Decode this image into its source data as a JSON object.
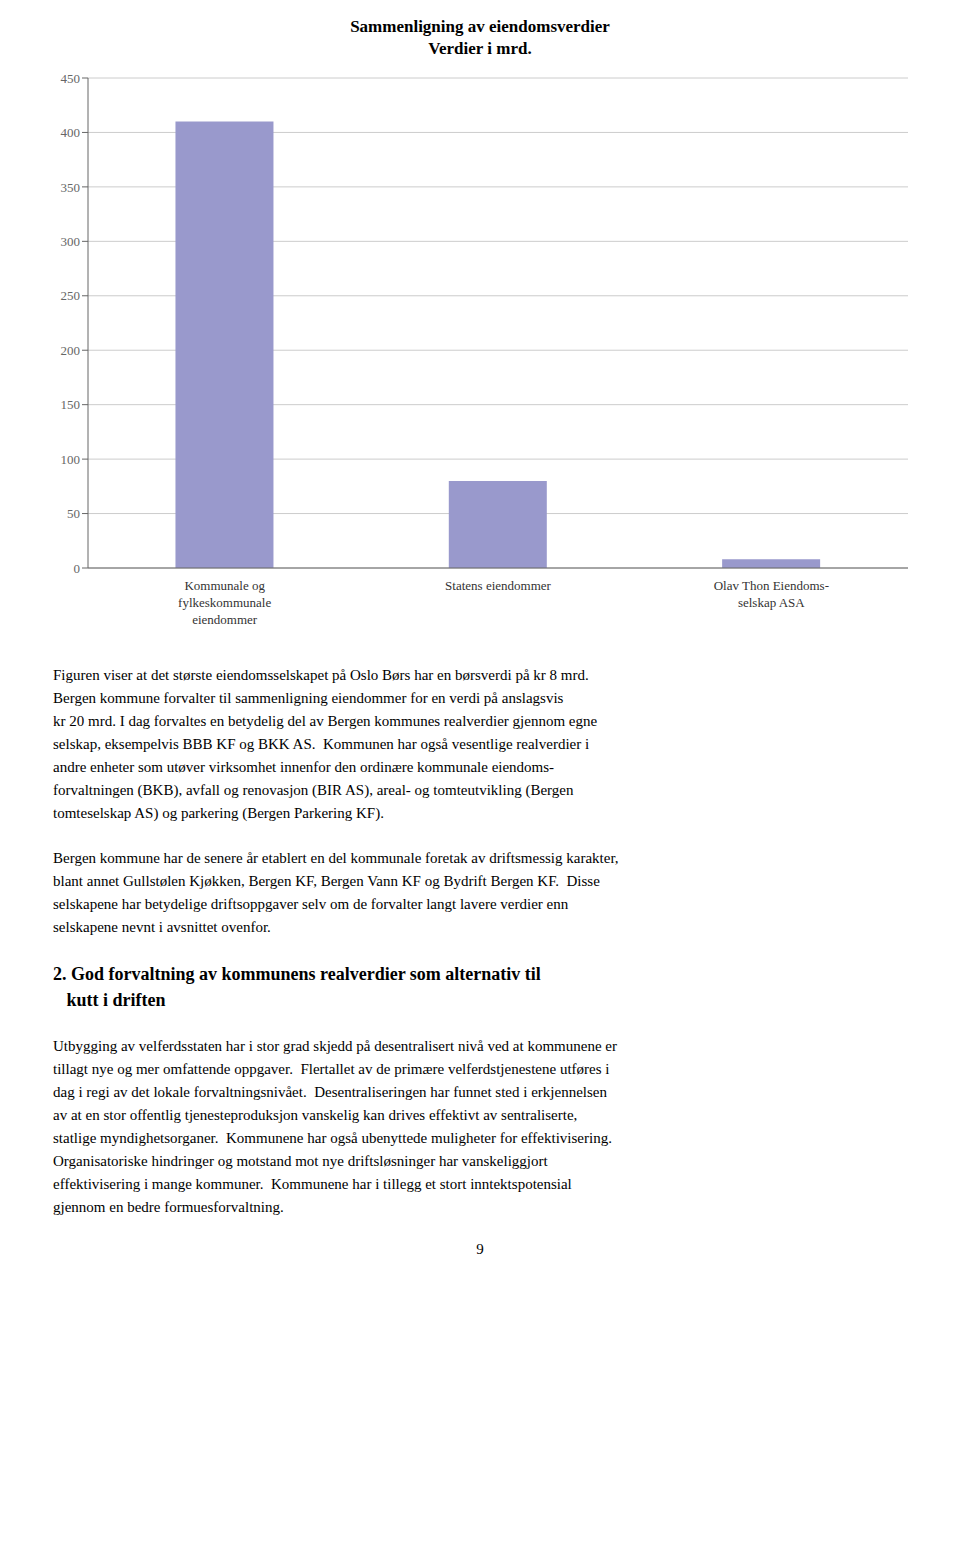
{
  "chart_data": {
    "type": "bar",
    "title": "Sammenligning av eiendomsverdier",
    "subtitle": "Verdier i mrd.",
    "categories": [
      "Kommunale og\nfylkeskommunale\neiendommer",
      "Statens eiendommer",
      "Olav Thon Eiendoms-\nselskap ASA"
    ],
    "values": [
      410,
      80,
      8
    ],
    "color": "#9999cc",
    "ylim": [
      0,
      450
    ],
    "yticks": [
      0,
      50,
      100,
      150,
      200,
      250,
      300,
      350,
      400,
      450
    ],
    "grid": true,
    "annotations": [
      [
        "Figuren viser at det største eiendomsselskapet på Oslo Børs har en børsverdi på kr 8 mrd.",
        "Bergen kommune forvalter til sammenligning eiendommer for en verdi på anslagsvis",
        "kr 20 mrd. I dag forvaltes en betydelig del av Bergen kommunes realverdier gjennom egne",
        "selskap, eksempelvis BBB KF og BKK AS.  Kommunen har også vesentlige realverdier i",
        "andre enheter som utøver virksomhet innenfor den ordinære kommunale eiendoms-",
        "forvaltningen (BKB), avfall og renovasjon (BIR AS), areal- og tomteutvikling (Bergen",
        "tomteselskap AS) og parkering (Bergen Parkering KF)."
      ],
      [
        "Bergen kommune har de senere år etablert en del kommunale foretak av driftsmessig karakter,",
        "blant annet Gullstølen Kjøkken, Bergen KF, Bergen Vann KF og Bydrift Bergen KF.  Disse",
        "selskapene har betydelige driftsoppgaver selv om de forvalter langt lavere verdier enn",
        "selskapene nevnt i avsnittet ovenfor."
      ],
      [
        "2. God forvaltning av kommunens realverdier som alternativ til",
        "   kutt i driften"
      ],
      [
        "Utbygging av velferdsstaten har i stor grad skjedd på desentralisert nivå ved at kommunene er",
        "tillagt nye og mer omfattende oppgaver.  Flertallet av de primære velferdstjenestene utføres i",
        "dag i regi av det lokale forvaltningsnivået.  Desentraliseringen har funnet sted i erkjennelsen",
        "av at en stor offentlig tjenesteproduksjon vanskelig kan drives effektivt av sentraliserte,",
        "statlige myndighetsorganer.  Kommunene har også ubenyttede muligheter for effektivisering.",
        "Organisatoriske hindringer og motstand mot nye driftsløsninger har vanskeliggjort",
        "effektivisering i mange kommuner.  Kommunene har i tillegg et stort inntektspotensial",
        "gjennom en bedre formuesforvaltning."
      ],
      [
        "9"
      ]
    ]
  }
}
